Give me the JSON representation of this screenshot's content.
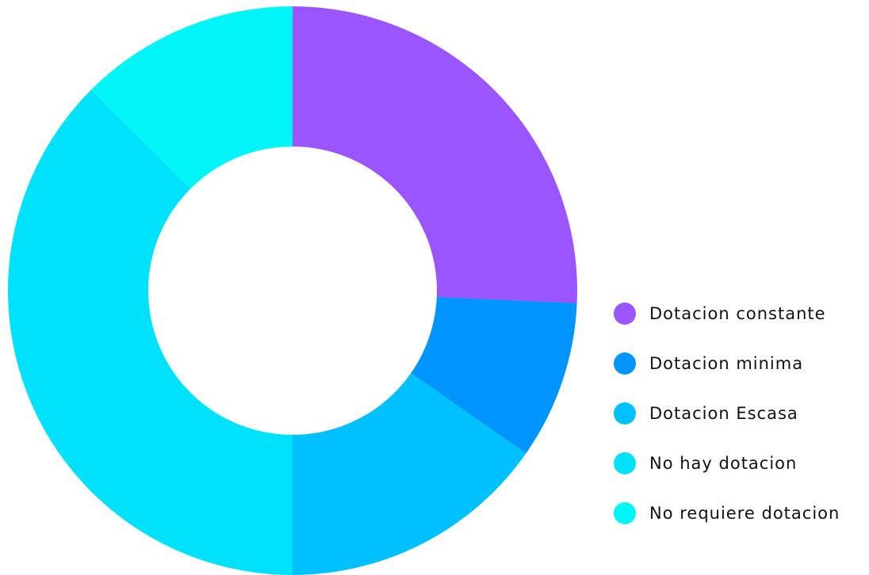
{
  "chart_data": {
    "type": "pie",
    "title": "",
    "legend_position": "right",
    "hole": "center",
    "categories": [
      "Dotacion constante",
      "Dotacion minima",
      "Dotacion Escasa",
      "No hay dotacion",
      "No requiere dotacion"
    ],
    "values": [
      25.7,
      9.0,
      15.3,
      37.5,
      12.5
    ],
    "colors": [
      "#9a55ff",
      "#0094ff",
      "#00c0ff",
      "#00e2fb",
      "#00f5f7"
    ]
  }
}
